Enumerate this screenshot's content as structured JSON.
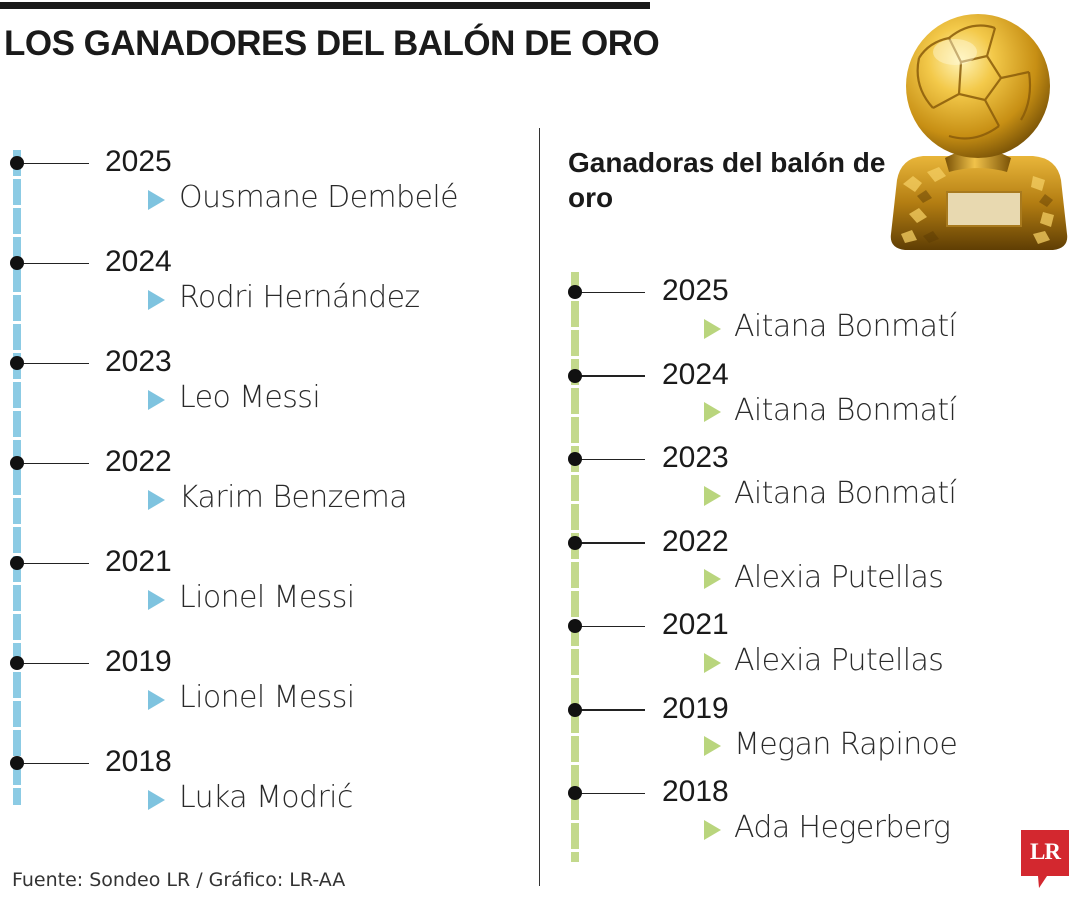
{
  "title": "LOS GANADORES DEL BALÓN DE ORO",
  "men": {
    "items": [
      {
        "year": "2025",
        "player": "Ousmane Dembelé"
      },
      {
        "year": "2024",
        "player": "Rodri Hernández"
      },
      {
        "year": "2023",
        "player": "Leo Messi"
      },
      {
        "year": "2022",
        "player": "Karim Benzema"
      },
      {
        "year": "2021",
        "player": "Lionel Messi"
      },
      {
        "year": "2019",
        "player": "Lionel Messi"
      },
      {
        "year": "2018",
        "player": "Luka Modrić"
      }
    ]
  },
  "women": {
    "heading": "Ganadoras del balón de oro",
    "items": [
      {
        "year": "2025",
        "player": "Aitana Bonmatí"
      },
      {
        "year": "2024",
        "player": "Aitana Bonmatí"
      },
      {
        "year": "2023",
        "player": "Aitana Bonmatí"
      },
      {
        "year": "2022",
        "player": "Alexia Putellas"
      },
      {
        "year": "2021",
        "player": "Alexia Putellas"
      },
      {
        "year": "2019",
        "player": "Megan Rapinoe"
      },
      {
        "year": "2018",
        "player": "Ada Hegerberg"
      }
    ]
  },
  "source": "Fuente: Sondeo LR / Gráfico: LR-AA",
  "logo": {
    "text": "LR",
    "color": "#d3282f"
  },
  "colors": {
    "men_line": "#8ccbe4",
    "women_line": "#c3d98c",
    "text": "#1a1a1a"
  },
  "icons": {
    "trophy": "ballon-dor-trophy-icon",
    "bullet": "triangle-right-icon"
  }
}
